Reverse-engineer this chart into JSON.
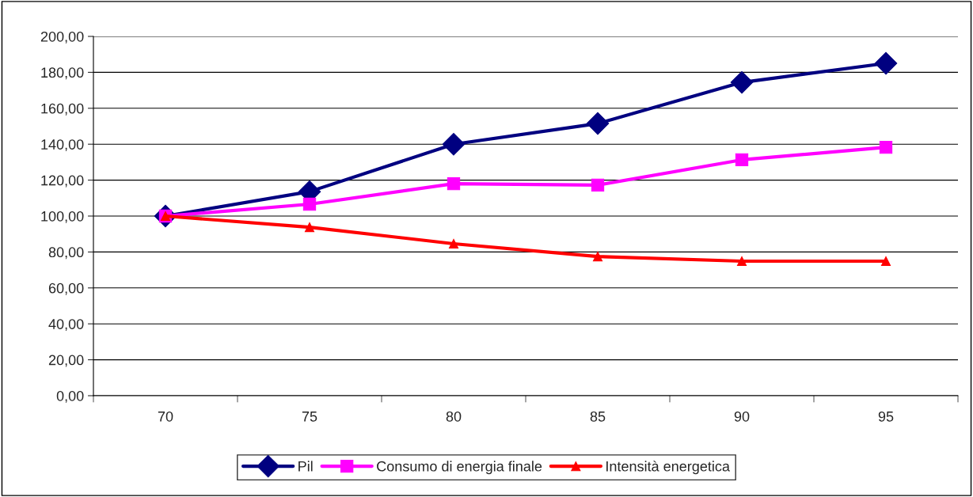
{
  "chart_data": {
    "type": "line",
    "categories": [
      "70",
      "75",
      "80",
      "85",
      "90",
      "95"
    ],
    "series": [
      {
        "name": "Pil",
        "color": "#000080",
        "marker": "diamond",
        "values": [
          100,
          113.6,
          140,
          151.5,
          174.4,
          185
        ]
      },
      {
        "name": "Consumo di energia finale",
        "color": "#ff00ff",
        "marker": "square",
        "values": [
          100,
          106.6,
          118,
          117.2,
          131.3,
          138.3
        ]
      },
      {
        "name": "Intensità energetica",
        "color": "#ff0000",
        "marker": "triangle",
        "values": [
          100,
          93.8,
          84.6,
          77.5,
          74.9,
          74.9
        ]
      }
    ],
    "ylim": [
      0,
      200
    ],
    "yticks": [
      {
        "value": 0,
        "label": "0,00"
      },
      {
        "value": 20,
        "label": "20,00"
      },
      {
        "value": 40,
        "label": "40,00"
      },
      {
        "value": 60,
        "label": "60,00"
      },
      {
        "value": 80,
        "label": "80,00"
      },
      {
        "value": 100,
        "label": "100,00"
      },
      {
        "value": 120,
        "label": "120,00"
      },
      {
        "value": 140,
        "label": "140,00"
      },
      {
        "value": 160,
        "label": "160,00"
      },
      {
        "value": 180,
        "label": "180,00"
      },
      {
        "value": 200,
        "label": "200,00"
      }
    ],
    "grid": "y",
    "legend": "bottom",
    "line_style": "solid"
  }
}
